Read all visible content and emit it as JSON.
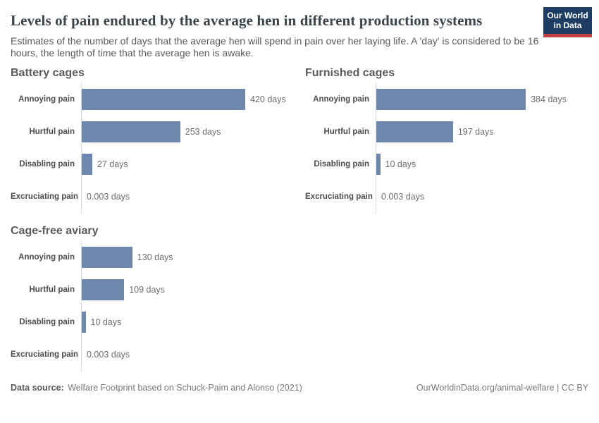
{
  "header": {
    "title": "Levels of pain endured by the average hen in different production systems",
    "subtitle": "Estimates of the number of days that the average hen will spend in pain over her laying life. A 'day' is considered to be 16 hours, the length of time that the average hen is awake.",
    "logo": {
      "line1": "Our World",
      "line2": "in Data"
    }
  },
  "chart_data": {
    "type": "bar",
    "orientation": "horizontal",
    "unit": "days",
    "categories": [
      "Annoying pain",
      "Hurtful pain",
      "Disabling pain",
      "Excruciating pain"
    ],
    "series": [
      {
        "name": "Battery cages",
        "values": [
          420,
          253,
          27,
          0.003
        ]
      },
      {
        "name": "Furnished cages",
        "values": [
          384,
          197,
          10,
          0.003
        ]
      },
      {
        "name": "Cage-free aviary",
        "values": [
          130,
          109,
          10,
          0.003
        ]
      }
    ],
    "xlim": [
      0,
      420
    ],
    "grid": false,
    "legend": "none",
    "bar_color": "#6e87ad"
  },
  "charts": [
    {
      "title": "Battery cages",
      "rows": [
        {
          "label": "Annoying pain",
          "value": 420,
          "value_label": "420 days"
        },
        {
          "label": "Hurtful pain",
          "value": 253,
          "value_label": "253 days"
        },
        {
          "label": "Disabling pain",
          "value": 27,
          "value_label": "27 days"
        },
        {
          "label": "Excruciating pain",
          "value": 0.003,
          "value_label": "0.003 days"
        }
      ]
    },
    {
      "title": "Furnished cages",
      "rows": [
        {
          "label": "Annoying pain",
          "value": 384,
          "value_label": "384 days"
        },
        {
          "label": "Hurtful pain",
          "value": 197,
          "value_label": "197 days"
        },
        {
          "label": "Disabling pain",
          "value": 10,
          "value_label": "10 days"
        },
        {
          "label": "Excruciating pain",
          "value": 0.003,
          "value_label": "0.003 days"
        }
      ]
    },
    {
      "title": "Cage-free aviary",
      "rows": [
        {
          "label": "Annoying pain",
          "value": 130,
          "value_label": "130 days"
        },
        {
          "label": "Hurtful pain",
          "value": 109,
          "value_label": "109 days"
        },
        {
          "label": "Disabling pain",
          "value": 10,
          "value_label": "10 days"
        },
        {
          "label": "Excruciating pain",
          "value": 0.003,
          "value_label": "0.003 days"
        }
      ]
    }
  ],
  "footer": {
    "source_label": "Data source:",
    "source_value": "Welfare Footprint based on Schuck-Paim and Alonso (2021)",
    "credit": "OurWorldinData.org/animal-welfare | CC BY"
  },
  "colors": {
    "bar": "#6e87ad",
    "logo_background": "#1d3d63",
    "logo_stripe": "#c2403f",
    "axis_line": "#dadada"
  }
}
